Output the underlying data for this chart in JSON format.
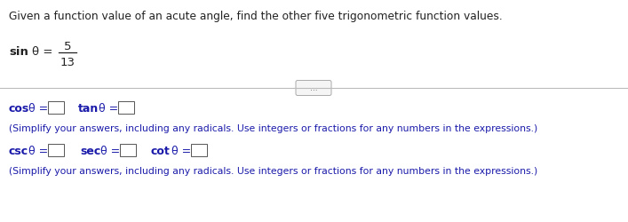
{
  "title": "Given a function value of an acute​ angle, find the other five trigonometric function values.",
  "sin_prefix": "sin  θ = ",
  "sin_numerator": "5",
  "sin_denominator": "13",
  "dots_button": "...",
  "line1_cos_prefix": "cos  θ =",
  "line1_tan_prefix": "tan  θ =",
  "simplify1": "(Simplify your answers, including any radicals. Use integers or fractions for any numbers in the expressions.)",
  "line2_csc_prefix": "csc  θ =",
  "line2_sec_prefix": "sec  θ =",
  "line2_cot_prefix": "cot  θ =",
  "simplify2": "(Simplify your answers, including any radicals. Use integers or fractions for any numbers in the expressions.)",
  "bg_color": "#ffffff",
  "dark_blue": "#1a1aaa",
  "text_color": "#222222",
  "box_edge_color": "#555555",
  "divider_color": "#bbbbbb",
  "btn_edge_color": "#aaaaaa",
  "btn_face_color": "#f5f5f5",
  "btn_text_color": "#555555",
  "font_size_title": 8.8,
  "font_size_sin": 9.5,
  "font_size_body": 9.0,
  "font_size_small": 7.8
}
